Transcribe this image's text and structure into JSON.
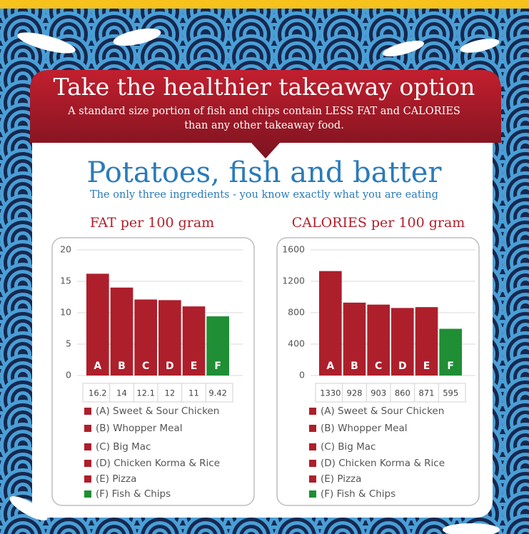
{
  "header": {
    "title": "Take the healthier takeaway option",
    "subtitle_lines": [
      "A standard size portion of fish and chips contain LESS FAT and CALORIES",
      "than any other takeaway food."
    ],
    "heading": "Potatoes, fish and batter",
    "tagline": "The only three ingredients - you know exactly what you are eating"
  },
  "chart_data": [
    {
      "type": "bar",
      "title": "FAT per 100 gram",
      "categories": [
        "A",
        "B",
        "C",
        "D",
        "E",
        "F"
      ],
      "values": [
        16.2,
        14,
        12.1,
        12,
        11,
        9.42
      ],
      "colors": [
        "#ad1f2b",
        "#ad1f2b",
        "#ad1f2b",
        "#ad1f2b",
        "#ad1f2b",
        "#1f8e35"
      ],
      "legend": [
        "(A) Sweet & Sour Chicken",
        "(B) Whopper Meal",
        "(C) Big Mac",
        "(D) Chicken Korma & Rice",
        "(E) Pizza",
        "(F) Fish & Chips"
      ],
      "ylim": [
        0,
        20
      ],
      "yticks": [
        0,
        5,
        10,
        15,
        20
      ],
      "grid": true
    },
    {
      "type": "bar",
      "title": "CALORIES per 100 gram",
      "categories": [
        "A",
        "B",
        "C",
        "D",
        "E",
        "F"
      ],
      "values": [
        1330,
        928,
        903,
        860,
        871,
        595
      ],
      "colors": [
        "#ad1f2b",
        "#ad1f2b",
        "#ad1f2b",
        "#ad1f2b",
        "#ad1f2b",
        "#1f8e35"
      ],
      "legend": [
        "(A) Sweet & Sour Chicken",
        "(B) Whopper Meal",
        "(C) Big Mac",
        "(D) Chicken Korma & Rice",
        "(E) Pizza",
        "(F) Fish & Chips"
      ],
      "ylim": [
        0,
        1600
      ],
      "yticks": [
        0,
        400,
        800,
        1200,
        1600
      ],
      "grid": true
    }
  ]
}
